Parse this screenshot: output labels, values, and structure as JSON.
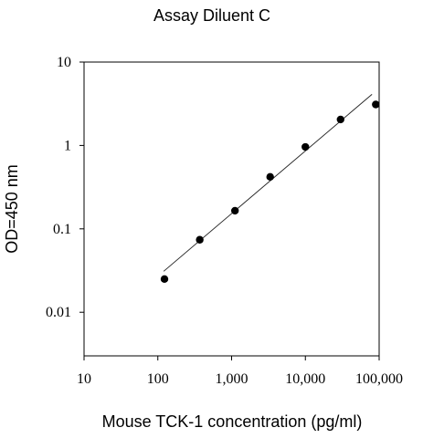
{
  "chart_data": {
    "type": "scatter",
    "title": "Assay Diluent C",
    "xlabel": "Mouse TCK-1 concentration (pg/ml)",
    "ylabel": "OD=450 nm",
    "x_scale": "log",
    "y_scale": "log",
    "xlim": [
      10,
      100000
    ],
    "ylim": [
      0.003,
      10
    ],
    "x_ticks": [
      10,
      100,
      1000,
      10000,
      100000
    ],
    "x_tick_labels": [
      "10",
      "100",
      "1,000",
      "10,000",
      "100,000"
    ],
    "y_ticks": [
      0.01,
      0.1,
      1,
      10
    ],
    "y_tick_labels": [
      "0.01",
      "0.1",
      "1",
      "10"
    ],
    "grid": false,
    "legend": "none",
    "series": [
      {
        "x": [
          123,
          370,
          1111,
          3333,
          10000,
          30000,
          90000
        ],
        "y": [
          0.025,
          0.074,
          0.165,
          0.42,
          0.96,
          2.05,
          3.1
        ],
        "marker": "circle",
        "color": "#000000"
      }
    ],
    "fit_line": {
      "x": [
        120,
        80000
      ],
      "y": [
        0.031,
        4.1
      ]
    }
  }
}
